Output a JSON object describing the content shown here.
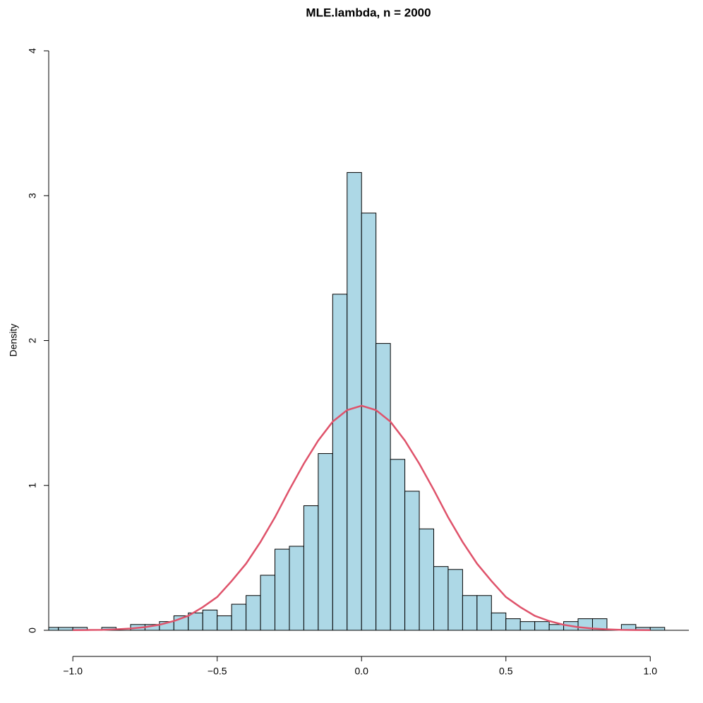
{
  "chart_data": {
    "type": "histogram",
    "title": "MLE.lambda, n = 2000",
    "ylabel": "Density",
    "bins": [
      -1.1,
      -1.05,
      -1.0,
      -0.95,
      -0.9,
      -0.85,
      -0.8,
      -0.75,
      -0.7,
      -0.65,
      -0.6,
      -0.55,
      -0.5,
      -0.45,
      -0.4,
      -0.35,
      -0.3,
      -0.25,
      -0.2,
      -0.15,
      -0.1,
      -0.05,
      0,
      0.05,
      0.1,
      0.15,
      0.2,
      0.25,
      0.3,
      0.35,
      0.4,
      0.45,
      0.5,
      0.55,
      0.6,
      0.65,
      0.7,
      0.75,
      0.8,
      0.85,
      0.9,
      0.95,
      1.0,
      1.05
    ],
    "values": [
      0.02,
      0.02,
      0.02,
      0,
      0.02,
      0,
      0.04,
      0.04,
      0.06,
      0.1,
      0.12,
      0.14,
      0.1,
      0.18,
      0.24,
      0.38,
      0.56,
      0.58,
      0.86,
      1.22,
      2.32,
      3.16,
      2.88,
      1.98,
      1.18,
      0.96,
      0.7,
      0.44,
      0.42,
      0.24,
      0.24,
      0.12,
      0.08,
      0.06,
      0.06,
      0.04,
      0.06,
      0.08,
      0.08,
      0,
      0.04,
      0.02,
      0.02
    ],
    "color": "#add8e6",
    "curve": {
      "type": "line",
      "color": "#df536b",
      "x": [
        -1.0,
        -0.95,
        -0.9,
        -0.85,
        -0.8,
        -0.75,
        -0.7,
        -0.65,
        -0.6,
        -0.55,
        -0.5,
        -0.45,
        -0.4,
        -0.35,
        -0.3,
        -0.25,
        -0.2,
        -0.15,
        -0.1,
        -0.05,
        0,
        0.05,
        0.1,
        0.15,
        0.2,
        0.25,
        0.3,
        0.35,
        0.4,
        0.45,
        0.5,
        0.55,
        0.6,
        0.65,
        0.7,
        0.75,
        0.8,
        0.85,
        0.9,
        0.95,
        1.0
      ],
      "values": [
        0.001,
        0.002,
        0.003,
        0.007,
        0.012,
        0.022,
        0.038,
        0.064,
        0.1,
        0.16,
        0.23,
        0.34,
        0.46,
        0.61,
        0.78,
        0.97,
        1.15,
        1.31,
        1.44,
        1.52,
        1.55,
        1.52,
        1.44,
        1.31,
        1.15,
        0.97,
        0.78,
        0.61,
        0.46,
        0.34,
        0.23,
        0.16,
        0.1,
        0.064,
        0.038,
        0.022,
        0.012,
        0.007,
        0.003,
        0.002,
        0.001
      ]
    },
    "xlim": [
      -1.0836,
      1.1338
    ],
    "xticks": [
      {
        "value": -1.0,
        "label": "−1.0"
      },
      {
        "value": -0.5,
        "label": "−0.5"
      },
      {
        "value": 0,
        "label": "0.0"
      },
      0.5,
      {
        "value": 1.0,
        "label": "1.0"
      }
    ],
    "ylim": [
      0,
      4
    ],
    "yticks": [
      0,
      1,
      2,
      3,
      4
    ]
  }
}
